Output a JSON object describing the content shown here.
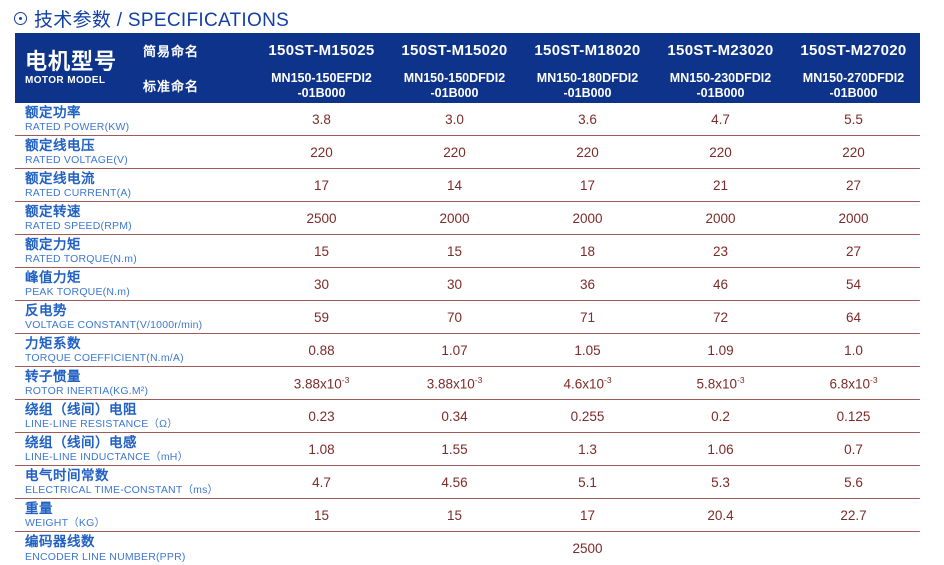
{
  "title": {
    "text": "技术参数 / SPECIFICATIONS",
    "icon": "circled-dot-icon"
  },
  "colors": {
    "header_bg": "#0d338a",
    "title_blue": "#123fa6",
    "label_zh_blue": "#2161c3",
    "label_en_blue": "#3d77d3",
    "value_maroon": "#7c2b28",
    "divider_maroon": "#9e5b58"
  },
  "header": {
    "model_label_zh": "电机型号",
    "model_label_en": "MOTOR MODEL",
    "simple_name_label": "简易命名",
    "standard_name_label": "标准命名",
    "columns": [
      {
        "simple": "150ST-M15025",
        "standard_line1": "MN150-150EFDI2",
        "standard_line2": "-01B000"
      },
      {
        "simple": "150ST-M15020",
        "standard_line1": "MN150-150DFDI2",
        "standard_line2": "-01B000"
      },
      {
        "simple": "150ST-M18020",
        "standard_line1": "MN150-180DFDI2",
        "standard_line2": "-01B000"
      },
      {
        "simple": "150ST-M23020",
        "standard_line1": "MN150-230DFDI2",
        "standard_line2": "-01B000"
      },
      {
        "simple": "150ST-M27020",
        "standard_line1": "MN150-270DFDI2",
        "standard_line2": "-01B000"
      }
    ]
  },
  "rows": [
    {
      "zh": "额定功率",
      "en": "RATED POWER(KW)",
      "values": [
        "3.8",
        "3.0",
        "3.6",
        "4.7",
        "5.5"
      ]
    },
    {
      "zh": "额定线电压",
      "en": "RATED VOLTAGE(V)",
      "values": [
        "220",
        "220",
        "220",
        "220",
        "220"
      ]
    },
    {
      "zh": "额定线电流",
      "en": "RATED CURRENT(A)",
      "values": [
        "17",
        "14",
        "17",
        "21",
        "27"
      ]
    },
    {
      "zh": "额定转速",
      "en": "RATED SPEED(RPM)",
      "values": [
        "2500",
        "2000",
        "2000",
        "2000",
        "2000"
      ]
    },
    {
      "zh": "额定力矩",
      "en": "RATED TORQUE(N.m)",
      "values": [
        "15",
        "15",
        "18",
        "23",
        "27"
      ]
    },
    {
      "zh": "峰值力矩",
      "en": "PEAK TORQUE(N.m)",
      "values": [
        "30",
        "30",
        "36",
        "46",
        "54"
      ]
    },
    {
      "zh": "反电势",
      "en": "VOLTAGE CONSTANT(V/1000r/min)",
      "values": [
        "59",
        "70",
        "71",
        "72",
        "64"
      ]
    },
    {
      "zh": "力矩系数",
      "en": "TORQUE COEFFICIENT(N.m/A)",
      "values": [
        "0.88",
        "1.07",
        "1.05",
        "1.09",
        "1.0"
      ]
    },
    {
      "zh": "转子惯量",
      "en": "ROTOR INERTIA(KG.M²)",
      "values": [
        {
          "base": "3.88x10",
          "sup": "-3"
        },
        {
          "base": "3.88x10",
          "sup": "-3"
        },
        {
          "base": "4.6x10",
          "sup": "-3"
        },
        {
          "base": "5.8x10",
          "sup": "-3"
        },
        {
          "base": "6.8x10",
          "sup": "-3"
        }
      ]
    },
    {
      "zh": "绕组（线间）电阻",
      "en": "LINE-LINE RESISTANCE（Ω）",
      "values": [
        "0.23",
        "0.34",
        "0.255",
        "0.2",
        "0.125"
      ]
    },
    {
      "zh": "绕组（线间）电感",
      "en": "LINE-LINE INDUCTANCE（mH）",
      "values": [
        "1.08",
        "1.55",
        "1.3",
        "1.06",
        "0.7"
      ]
    },
    {
      "zh": "电气时间常数",
      "en": "ELECTRICAL TIME-CONSTANT（ms）",
      "values": [
        "4.7",
        "4.56",
        "5.1",
        "5.3",
        "5.6"
      ]
    },
    {
      "zh": "重量",
      "en": "WEIGHT（KG）",
      "values": [
        "15",
        "15",
        "17",
        "20.4",
        "22.7"
      ]
    },
    {
      "zh": "编码器线数",
      "en": "ENCODER LINE NUMBER(PPR)",
      "span_value": "2500"
    }
  ]
}
